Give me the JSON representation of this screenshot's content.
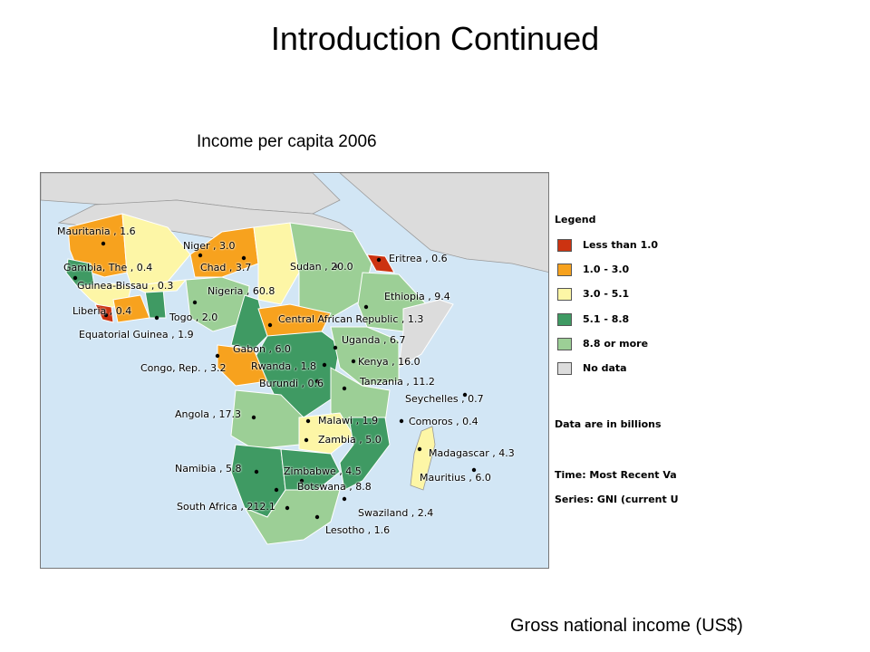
{
  "slide": {
    "title": "Introduction Continued",
    "subtitle": "Income per capita 2006",
    "caption": "Gross national income (US$)"
  },
  "legend": {
    "title": "Legend",
    "items": [
      {
        "label": "Less than  1.0",
        "color": "#cc3311"
      },
      {
        "label": "1.0 - 3.0",
        "color": "#f7a21e"
      },
      {
        "label": "3.0 - 5.1",
        "color": "#fdf6a6"
      },
      {
        "label": "5.1 - 8.8",
        "color": "#3f9a63"
      },
      {
        "label": "8.8  or more",
        "color": "#9ccf96"
      },
      {
        "label": "No data",
        "color": "#dcdcdc"
      }
    ],
    "note": "Data are in billions",
    "time": "Time: Most Recent Va",
    "series": "Series: GNI (current U"
  },
  "map": {
    "ocean_color": "#d2e6f5",
    "no_data_color": "#dcdcdc",
    "countries": [
      {
        "id": "mauritania",
        "label": "Mauritania , 1.6",
        "value": 1.6
      },
      {
        "id": "niger",
        "label": "Niger , 3.0",
        "value": 3.0
      },
      {
        "id": "gambia",
        "label": "Gambia, The , 0.4",
        "value": 0.4
      },
      {
        "id": "chad",
        "label": "Chad , 3.7",
        "value": 3.7
      },
      {
        "id": "sudan",
        "label": "Sudan , 20.0",
        "value": 20.0
      },
      {
        "id": "eritrea",
        "label": "Eritrea , 0.6",
        "value": 0.6
      },
      {
        "id": "guinea-bissau",
        "label": "Guinea-Bissau , 0.3",
        "value": 0.3
      },
      {
        "id": "nigeria",
        "label": "Nigeria , 60.8",
        "value": 60.8
      },
      {
        "id": "ethiopia",
        "label": "Ethiopia , 9.4",
        "value": 9.4
      },
      {
        "id": "liberia",
        "label": "Liberia , 0.4",
        "value": 0.4
      },
      {
        "id": "togo",
        "label": "Togo , 2.0",
        "value": 2.0
      },
      {
        "id": "car",
        "label": "Central African Republic , 1.3",
        "value": 1.3
      },
      {
        "id": "equatorial-guinea",
        "label": "Equatorial Guinea , 1.9",
        "value": 1.9
      },
      {
        "id": "uganda",
        "label": "Uganda , 6.7",
        "value": 6.7
      },
      {
        "id": "gabon",
        "label": "Gabon , 6.0",
        "value": 6.0
      },
      {
        "id": "kenya",
        "label": "Kenya , 16.0",
        "value": 16.0
      },
      {
        "id": "congo-rep",
        "label": "Congo, Rep. , 3.2",
        "value": 3.2
      },
      {
        "id": "rwanda",
        "label": "Rwanda , 1.8",
        "value": 1.8
      },
      {
        "id": "burundi",
        "label": "Burundi , 0.6",
        "value": 0.6
      },
      {
        "id": "tanzania",
        "label": "Tanzania , 11.2",
        "value": 11.2
      },
      {
        "id": "seychelles",
        "label": "Seychelles , 0.7",
        "value": 0.7
      },
      {
        "id": "angola",
        "label": "Angola , 17.3",
        "value": 17.3
      },
      {
        "id": "malawi",
        "label": "Malawi , 1.9",
        "value": 1.9
      },
      {
        "id": "comoros",
        "label": "Comoros , 0.4",
        "value": 0.4
      },
      {
        "id": "zambia",
        "label": "Zambia , 5.0",
        "value": 5.0
      },
      {
        "id": "madagascar",
        "label": "Madagascar , 4.3",
        "value": 4.3
      },
      {
        "id": "namibia",
        "label": "Namibia , 5.8",
        "value": 5.8
      },
      {
        "id": "zimbabwe",
        "label": "Zimbabwe , 4.5",
        "value": 4.5
      },
      {
        "id": "mauritius",
        "label": "Mauritius , 6.0",
        "value": 6.0
      },
      {
        "id": "botswana",
        "label": "Botswana , 8.8",
        "value": 8.8
      },
      {
        "id": "south-africa",
        "label": "South Africa , 212.1",
        "value": 212.1
      },
      {
        "id": "swaziland",
        "label": "Swaziland , 2.4",
        "value": 2.4
      },
      {
        "id": "lesotho",
        "label": "Lesotho , 1.6",
        "value": 1.6
      }
    ]
  }
}
